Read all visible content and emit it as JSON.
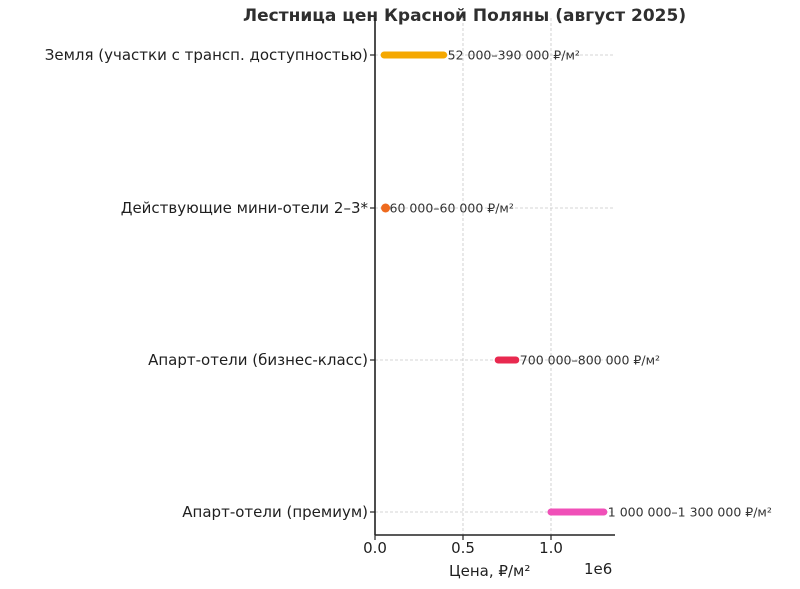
{
  "chart_data": {
    "type": "range-bar",
    "title": "Лестница цен Красной Поляны (август 2025)",
    "xlabel": "Цена, ₽/м²",
    "ylabel": "",
    "x_offset_label": "1e6",
    "xlim": [
      0,
      1360000
    ],
    "xticks": [
      0,
      500000,
      1000000
    ],
    "xtick_labels": [
      "0.0",
      "0.5",
      "1.0"
    ],
    "grid": true,
    "categories": [
      "Земля (участки с трансп. доступностью)",
      "Действующие мини-отели 2–3*",
      "Апарт-отели (бизнес-класс)",
      "Апарт-отели (премиум)"
    ],
    "series": [
      {
        "name": "Земля (участки с трансп. доступностью)",
        "min": 52000,
        "max": 390000,
        "label": "52 000–390 000 ₽/м²",
        "color": "#f5a800"
      },
      {
        "name": "Действующие мини-отели 2–3*",
        "min": 60000,
        "max": 60000,
        "label": "60 000–60 000 ₽/м²",
        "color": "#ee6a1e"
      },
      {
        "name": "Апарт-отели (бизнес-класс)",
        "min": 700000,
        "max": 800000,
        "label": "700 000–800 000 ₽/м²",
        "color": "#e8294f"
      },
      {
        "name": "Апарт-отели (премиум)",
        "min": 1000000,
        "max": 1300000,
        "label": "1 000 000–1 300 000 ₽/м²",
        "color": "#f050b8"
      }
    ]
  }
}
